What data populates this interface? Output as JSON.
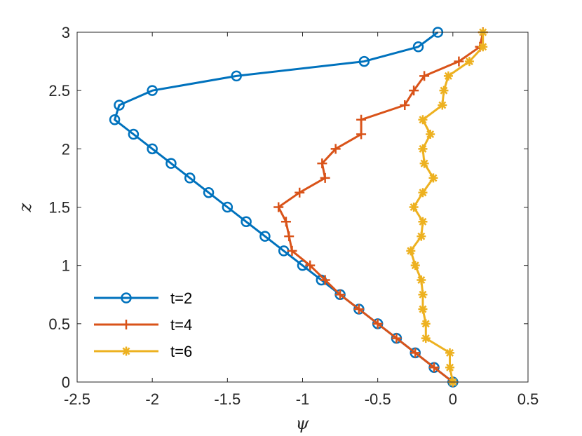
{
  "chart_data": {
    "type": "line",
    "xlabel": "ψ",
    "ylabel": "z",
    "xlim": [
      -2.5,
      0.5
    ],
    "ylim": [
      0,
      3
    ],
    "xticks": [
      "-2.5",
      "-2",
      "-1.5",
      "-1",
      "-0.5",
      "0",
      "0.5"
    ],
    "yticks": [
      "0",
      "0.5",
      "1",
      "1.5",
      "2",
      "2.5",
      "3"
    ],
    "grid": false,
    "legend_position": "bottom-left",
    "series": [
      {
        "name": "t=2",
        "color": "#0072BD",
        "marker": "circle",
        "x": [
          0,
          -0.125,
          -0.25,
          -0.375,
          -0.5,
          -0.625,
          -0.75,
          -0.875,
          -1.0,
          -1.125,
          -1.25,
          -1.375,
          -1.5,
          -1.625,
          -1.75,
          -1.875,
          -2.0,
          -2.125,
          -2.25,
          -2.22,
          -2.0,
          -1.44,
          -0.59,
          -0.23,
          -0.1
        ],
        "y": [
          0,
          0.125,
          0.25,
          0.375,
          0.5,
          0.625,
          0.75,
          0.875,
          1.0,
          1.125,
          1.25,
          1.375,
          1.5,
          1.625,
          1.75,
          1.875,
          2.0,
          2.125,
          2.25,
          2.375,
          2.5,
          2.625,
          2.75,
          2.875,
          3.0
        ]
      },
      {
        "name": "t=4",
        "color": "#D95319",
        "marker": "plus",
        "x": [
          0,
          -0.125,
          -0.25,
          -0.375,
          -0.5,
          -0.625,
          -0.75,
          -0.85,
          -0.95,
          -1.07,
          -1.09,
          -1.11,
          -1.16,
          -1.02,
          -0.85,
          -0.87,
          -0.78,
          -0.61,
          -0.61,
          -0.32,
          -0.26,
          -0.19,
          0.04,
          0.18,
          0.2
        ],
        "y": [
          0,
          0.125,
          0.25,
          0.375,
          0.5,
          0.625,
          0.75,
          0.875,
          1.0,
          1.125,
          1.25,
          1.375,
          1.5,
          1.625,
          1.75,
          1.875,
          2.0,
          2.125,
          2.25,
          2.375,
          2.5,
          2.625,
          2.75,
          2.875,
          3.0
        ]
      },
      {
        "name": "t=6",
        "color": "#EDB120",
        "marker": "asterisk",
        "x": [
          0,
          -0.02,
          -0.02,
          -0.18,
          -0.18,
          -0.2,
          -0.2,
          -0.21,
          -0.25,
          -0.28,
          -0.21,
          -0.2,
          -0.26,
          -0.2,
          -0.13,
          -0.19,
          -0.2,
          -0.15,
          -0.2,
          -0.07,
          -0.06,
          -0.03,
          0.11,
          0.2,
          0.2
        ],
        "y": [
          0,
          0.125,
          0.25,
          0.375,
          0.5,
          0.625,
          0.75,
          0.875,
          1.0,
          1.125,
          1.25,
          1.375,
          1.5,
          1.625,
          1.75,
          1.875,
          2.0,
          2.125,
          2.25,
          2.375,
          2.5,
          2.625,
          2.75,
          2.875,
          3.0
        ]
      }
    ]
  }
}
